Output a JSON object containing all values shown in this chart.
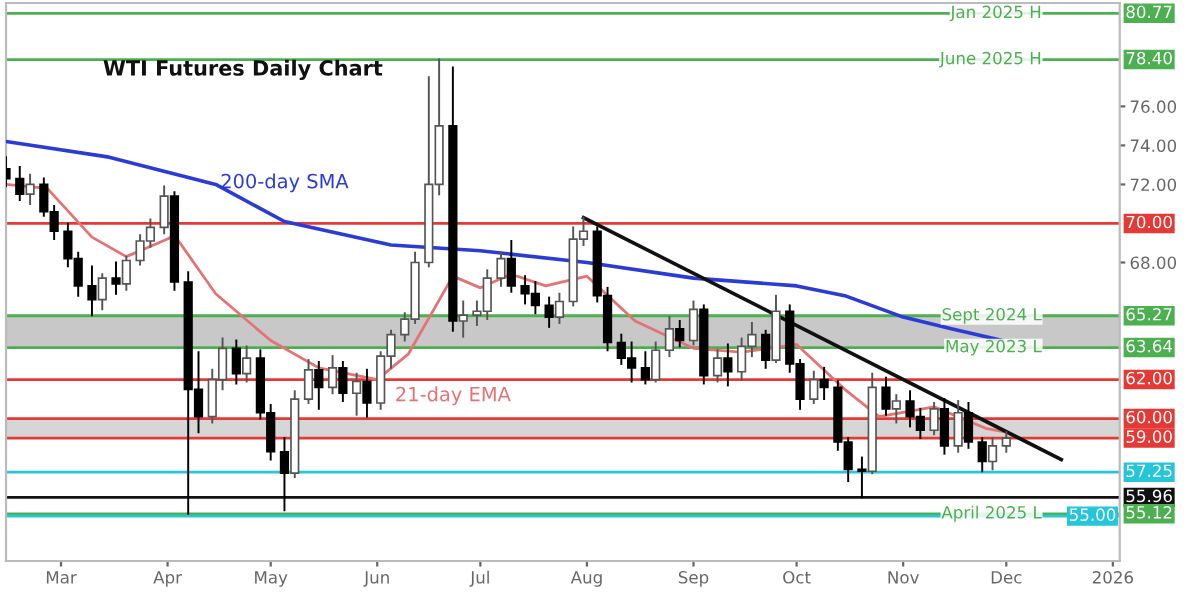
{
  "chart_data": {
    "type": "candlestick",
    "title": "WTI Futures Daily Chart",
    "x": [
      "2025-02-13",
      "2025-02-17",
      "2025-02-20",
      "2025-02-24",
      "2025-02-27",
      "2025-03-03",
      "2025-03-06",
      "2025-03-10",
      "2025-03-13",
      "2025-03-17",
      "2025-03-20",
      "2025-03-24",
      "2025-03-27",
      "2025-03-31",
      "2025-04-03",
      "2025-04-07",
      "2025-04-10",
      "2025-04-14",
      "2025-04-17",
      "2025-04-21",
      "2025-04-24",
      "2025-04-28",
      "2025-05-01",
      "2025-05-05",
      "2025-05-08",
      "2025-05-12",
      "2025-05-15",
      "2025-05-19",
      "2025-05-22",
      "2025-05-26",
      "2025-05-29",
      "2025-06-02",
      "2025-06-05",
      "2025-06-09",
      "2025-06-12",
      "2025-06-16",
      "2025-06-19",
      "2025-06-23",
      "2025-06-26",
      "2025-06-30",
      "2025-07-03",
      "2025-07-07",
      "2025-07-10",
      "2025-07-14",
      "2025-07-17",
      "2025-07-21",
      "2025-07-24",
      "2025-07-28",
      "2025-07-31",
      "2025-08-04",
      "2025-08-07",
      "2025-08-11",
      "2025-08-14",
      "2025-08-18",
      "2025-08-21",
      "2025-08-25",
      "2025-08-28",
      "2025-09-01",
      "2025-09-04",
      "2025-09-08",
      "2025-09-11",
      "2025-09-15",
      "2025-09-18",
      "2025-09-22",
      "2025-09-25",
      "2025-09-29",
      "2025-10-02",
      "2025-10-06",
      "2025-10-09",
      "2025-10-13",
      "2025-10-16",
      "2025-10-20",
      "2025-10-23",
      "2025-10-27",
      "2025-10-30",
      "2025-11-03",
      "2025-11-06",
      "2025-11-10",
      "2025-11-13",
      "2025-11-17",
      "2025-11-20",
      "2025-11-24",
      "2025-11-27",
      "2025-12-01"
    ],
    "ohlc": [
      [
        72.8,
        73.4,
        71.9,
        72.3
      ],
      [
        72.3,
        72.9,
        71.2,
        71.5
      ],
      [
        71.5,
        72.5,
        71.0,
        72.0
      ],
      [
        72.0,
        72.3,
        70.4,
        70.6
      ],
      [
        70.6,
        70.9,
        69.2,
        69.6
      ],
      [
        69.6,
        70.0,
        67.8,
        68.2
      ],
      [
        68.2,
        68.5,
        66.3,
        66.8
      ],
      [
        66.8,
        67.8,
        65.3,
        66.1
      ],
      [
        66.1,
        67.4,
        65.6,
        67.2
      ],
      [
        67.2,
        68.0,
        66.4,
        66.9
      ],
      [
        66.9,
        68.3,
        66.6,
        68.1
      ],
      [
        68.1,
        69.4,
        67.9,
        69.1
      ],
      [
        69.1,
        70.2,
        68.8,
        69.8
      ],
      [
        69.8,
        71.9,
        69.5,
        71.4
      ],
      [
        71.4,
        71.6,
        66.6,
        67.0
      ],
      [
        67.0,
        67.5,
        55.12,
        61.5
      ],
      [
        61.5,
        63.4,
        59.3,
        60.1
      ],
      [
        60.1,
        62.5,
        59.8,
        62.0
      ],
      [
        62.0,
        64.1,
        61.5,
        63.6
      ],
      [
        63.6,
        64.0,
        61.8,
        62.3
      ],
      [
        62.3,
        63.7,
        61.9,
        63.1
      ],
      [
        63.1,
        63.5,
        60.0,
        60.3
      ],
      [
        60.3,
        60.7,
        57.9,
        58.3
      ],
      [
        58.3,
        59.0,
        55.3,
        57.2
      ],
      [
        57.2,
        61.4,
        57.0,
        61.0
      ],
      [
        61.0,
        63.0,
        60.8,
        62.5
      ],
      [
        62.5,
        62.9,
        60.5,
        61.6
      ],
      [
        61.6,
        63.2,
        61.3,
        62.6
      ],
      [
        62.6,
        62.9,
        60.9,
        61.3
      ],
      [
        61.3,
        62.3,
        60.2,
        61.9
      ],
      [
        61.9,
        62.5,
        60.1,
        60.8
      ],
      [
        60.8,
        63.4,
        60.5,
        63.2
      ],
      [
        63.2,
        64.5,
        62.6,
        64.3
      ],
      [
        64.3,
        65.4,
        64.0,
        65.1
      ],
      [
        65.1,
        68.5,
        64.9,
        68.0
      ],
      [
        68.0,
        77.5,
        67.8,
        72.0
      ],
      [
        72.0,
        78.4,
        71.5,
        75.0
      ],
      [
        75.0,
        78.0,
        64.5,
        65.0
      ],
      [
        65.0,
        66.0,
        64.2,
        65.3
      ],
      [
        65.3,
        66.0,
        64.8,
        65.5
      ],
      [
        65.5,
        67.6,
        65.1,
        67.2
      ],
      [
        67.2,
        68.5,
        66.8,
        68.2
      ],
      [
        68.2,
        69.1,
        66.5,
        66.8
      ],
      [
        66.8,
        67.3,
        65.9,
        66.4
      ],
      [
        66.4,
        67.0,
        65.4,
        65.8
      ],
      [
        65.8,
        66.2,
        64.7,
        65.2
      ],
      [
        65.2,
        66.4,
        64.9,
        66.0
      ],
      [
        66.0,
        69.8,
        65.8,
        69.2
      ],
      [
        69.2,
        70.3,
        68.9,
        69.6
      ],
      [
        69.6,
        69.8,
        66.0,
        66.3
      ],
      [
        66.3,
        66.7,
        63.5,
        63.9
      ],
      [
        63.9,
        64.3,
        62.8,
        63.1
      ],
      [
        63.1,
        63.9,
        61.9,
        62.6
      ],
      [
        62.6,
        63.4,
        61.8,
        62.0
      ],
      [
        62.0,
        63.9,
        61.9,
        63.5
      ],
      [
        63.5,
        65.2,
        63.2,
        64.6
      ],
      [
        64.6,
        65.0,
        63.7,
        64.0
      ],
      [
        64.0,
        66.0,
        63.8,
        65.6
      ],
      [
        65.6,
        65.8,
        61.8,
        62.2
      ],
      [
        62.2,
        63.5,
        61.9,
        63.1
      ],
      [
        63.1,
        63.8,
        61.7,
        62.4
      ],
      [
        62.4,
        64.1,
        62.0,
        63.7
      ],
      [
        63.7,
        64.9,
        63.2,
        64.3
      ],
      [
        64.3,
        64.5,
        62.6,
        63.0
      ],
      [
        63.0,
        66.3,
        62.9,
        65.5
      ],
      [
        65.5,
        65.8,
        62.4,
        62.8
      ],
      [
        62.8,
        63.0,
        60.5,
        61.0
      ],
      [
        61.0,
        62.4,
        60.8,
        62.0
      ],
      [
        62.0,
        62.6,
        61.0,
        61.6
      ],
      [
        61.6,
        61.9,
        58.4,
        58.8
      ],
      [
        58.8,
        59.0,
        56.8,
        57.4
      ],
      [
        57.4,
        58.0,
        55.96,
        57.3
      ],
      [
        57.3,
        62.3,
        57.2,
        61.6
      ],
      [
        61.6,
        62.1,
        60.2,
        60.5
      ],
      [
        60.5,
        61.2,
        59.8,
        60.9
      ],
      [
        60.9,
        61.4,
        59.6,
        60.1
      ],
      [
        60.1,
        60.5,
        59.0,
        59.4
      ],
      [
        59.4,
        60.8,
        59.2,
        60.5
      ],
      [
        60.5,
        61.0,
        58.2,
        58.6
      ],
      [
        58.6,
        60.9,
        58.3,
        60.3
      ],
      [
        60.3,
        60.8,
        58.5,
        58.8
      ],
      [
        58.8,
        59.0,
        57.3,
        57.8
      ],
      [
        57.8,
        59.0,
        57.4,
        58.6
      ],
      [
        58.6,
        59.3,
        58.3,
        59.0
      ]
    ],
    "series": [
      {
        "name": "200-day SMA",
        "type": "line",
        "color": "#2b3bd6",
        "x": [
          "2025-02-13",
          "2025-03-15",
          "2025-04-15",
          "2025-05-05",
          "2025-06-05",
          "2025-07-01",
          "2025-08-01",
          "2025-09-01",
          "2025-10-01",
          "2025-10-15",
          "2025-11-01",
          "2025-11-15",
          "2025-11-30"
        ],
        "values": [
          74.2,
          73.4,
          72.0,
          70.1,
          68.9,
          68.6,
          68.0,
          67.2,
          66.8,
          66.3,
          65.2,
          64.6,
          64.0
        ]
      },
      {
        "name": "21-day EMA",
        "type": "line",
        "color": "#e57373",
        "x": [
          "2025-02-13",
          "2025-02-25",
          "2025-03-10",
          "2025-03-20",
          "2025-04-01",
          "2025-04-03",
          "2025-04-15",
          "2025-05-01",
          "2025-05-15",
          "2025-06-01",
          "2025-06-10",
          "2025-06-23",
          "2025-07-01",
          "2025-07-10",
          "2025-07-20",
          "2025-08-01",
          "2025-08-15",
          "2025-09-01",
          "2025-09-15",
          "2025-10-01",
          "2025-10-15",
          "2025-10-25",
          "2025-11-10",
          "2025-11-25",
          "2025-12-01"
        ],
        "values": [
          72.0,
          71.8,
          69.3,
          68.3,
          69.2,
          69.4,
          66.4,
          64.0,
          62.6,
          62.0,
          63.3,
          67.3,
          66.7,
          67.4,
          66.8,
          67.3,
          65.0,
          63.6,
          63.4,
          63.8,
          61.5,
          60.1,
          60.6,
          59.5,
          59.3
        ]
      },
      {
        "type": "line",
        "color": "#111111",
        "x": [
          "2025-07-31",
          "2025-12-17"
        ],
        "values": [
          70.3,
          57.9
        ]
      }
    ],
    "ref_lines": [
      {
        "axis": "y",
        "value": 80.77,
        "label": "80.77",
        "color": "#4caf50"
      },
      {
        "axis": "y",
        "value": 78.4,
        "label": "78.40",
        "color": "#4caf50"
      },
      {
        "axis": "y",
        "value": 70.0,
        "label": "70.00",
        "color": "#e53935"
      },
      {
        "axis": "y",
        "value": 65.27,
        "label": "65.27",
        "color": "#4caf50"
      },
      {
        "axis": "y",
        "value": 63.64,
        "label": "63.64",
        "color": "#4caf50"
      },
      {
        "axis": "y",
        "value": 62.0,
        "label": "62.00",
        "color": "#e53935"
      },
      {
        "axis": "y",
        "value": 60.0,
        "label": "60.00",
        "color": "#e53935"
      },
      {
        "axis": "y",
        "value": 59.0,
        "label": "59.00",
        "color": "#e53935"
      },
      {
        "axis": "y",
        "value": 57.25,
        "label": "57.25",
        "color": "#26c6da"
      },
      {
        "axis": "y",
        "value": 55.96,
        "label": "55.96",
        "color": "#111111"
      },
      {
        "axis": "y",
        "value": 55.12,
        "label": "55.12",
        "color": "#4caf50"
      },
      {
        "axis": "y",
        "value": 55.0,
        "label": "55.00",
        "color": "#26c6da"
      }
    ],
    "annotations": [
      {
        "text": "Jan 2025 H",
        "y": 80.77
      },
      {
        "text": "June 2025 H",
        "y": 78.4
      },
      {
        "text": "Sept 2024 L",
        "y": 65.27
      },
      {
        "text": "May 2023 L",
        "y": 63.64
      },
      {
        "text": "April 2025 L",
        "y": 55.12
      }
    ],
    "bands": [
      {
        "axis": "y",
        "from": 63.64,
        "to": 65.27,
        "color": "#c8c8c8"
      },
      {
        "axis": "y",
        "from": 59.0,
        "to": 60.0,
        "color": "#d6d6d6"
      }
    ],
    "xlim": [
      "2025-02-13",
      "2026-01-03"
    ],
    "xticks": [
      {
        "value": "2025-03-01",
        "label": "Mar"
      },
      {
        "value": "2025-04-01",
        "label": "Apr"
      },
      {
        "value": "2025-05-01",
        "label": "May"
      },
      {
        "value": "2025-06-01",
        "label": "Jun"
      },
      {
        "value": "2025-07-01",
        "label": "Jul"
      },
      {
        "value": "2025-08-01",
        "label": "Aug"
      },
      {
        "value": "2025-09-01",
        "label": "Sep"
      },
      {
        "value": "2025-10-01",
        "label": "Oct"
      },
      {
        "value": "2025-11-01",
        "label": "Nov"
      },
      {
        "value": "2025-12-01",
        "label": "Dec"
      },
      {
        "value": "2026-01-01",
        "label": "2026"
      }
    ],
    "ylim": [
      52.7,
      81.3
    ],
    "yticks": [
      {
        "value": 68,
        "label": "68.00"
      },
      {
        "value": 72,
        "label": "72.00"
      },
      {
        "value": 74,
        "label": "74.00"
      },
      {
        "value": 76,
        "label": "76.00"
      }
    ],
    "grid": false,
    "legend": false
  }
}
